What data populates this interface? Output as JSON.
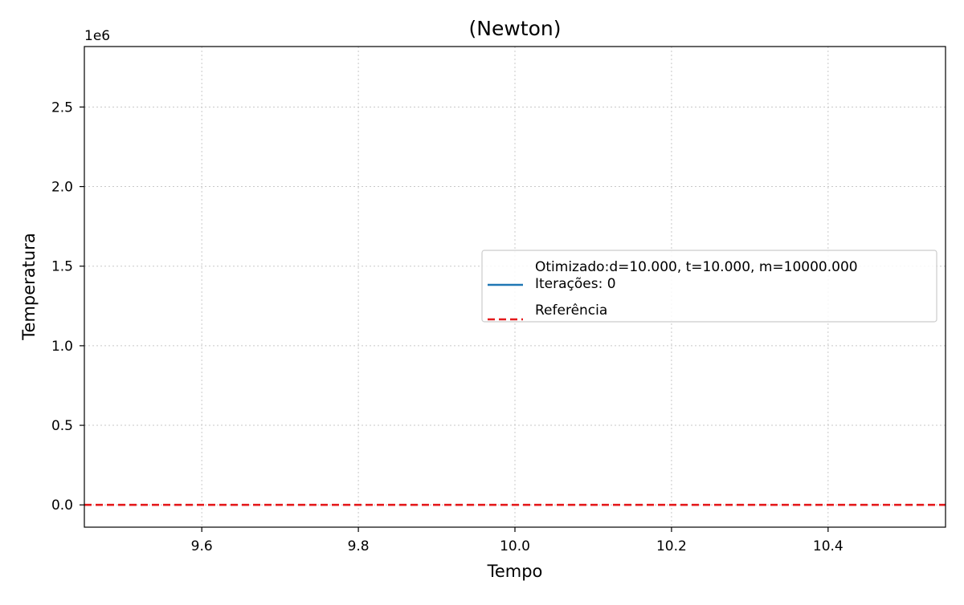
{
  "chart_data": {
    "type": "line",
    "title": "(Newton)",
    "xlabel": "Tempo",
    "ylabel": "Temperatura",
    "y_offset_label": "1e6",
    "xlim": [
      9.45,
      10.55
    ],
    "ylim": [
      -0.14,
      2.88
    ],
    "x_ticks": [
      9.6,
      9.8,
      10.0,
      10.2,
      10.4
    ],
    "x_tick_labels": [
      "9.6",
      "9.8",
      "10.0",
      "10.2",
      "10.4"
    ],
    "y_ticks": [
      0.0,
      0.5,
      1.0,
      1.5,
      2.0,
      2.5
    ],
    "y_tick_labels": [
      "0.0",
      "0.5",
      "1.0",
      "1.5",
      "2.0",
      "2.5"
    ],
    "grid": true,
    "legend_position": "center-right",
    "series": [
      {
        "name": "Otimizado:d=10.000, t=10.000, m=10000.000\nIterações: 0",
        "legend_lines": [
          "Otimizado:d=10.000, t=10.000, m=10000.000",
          "Iterações: 0"
        ],
        "color": "#1f77b4",
        "style": "solid",
        "points": []
      },
      {
        "name": "Referência",
        "legend_lines": [
          "Referência"
        ],
        "color": "#e41a1c",
        "style": "dashed",
        "hline": 0.0
      }
    ]
  }
}
